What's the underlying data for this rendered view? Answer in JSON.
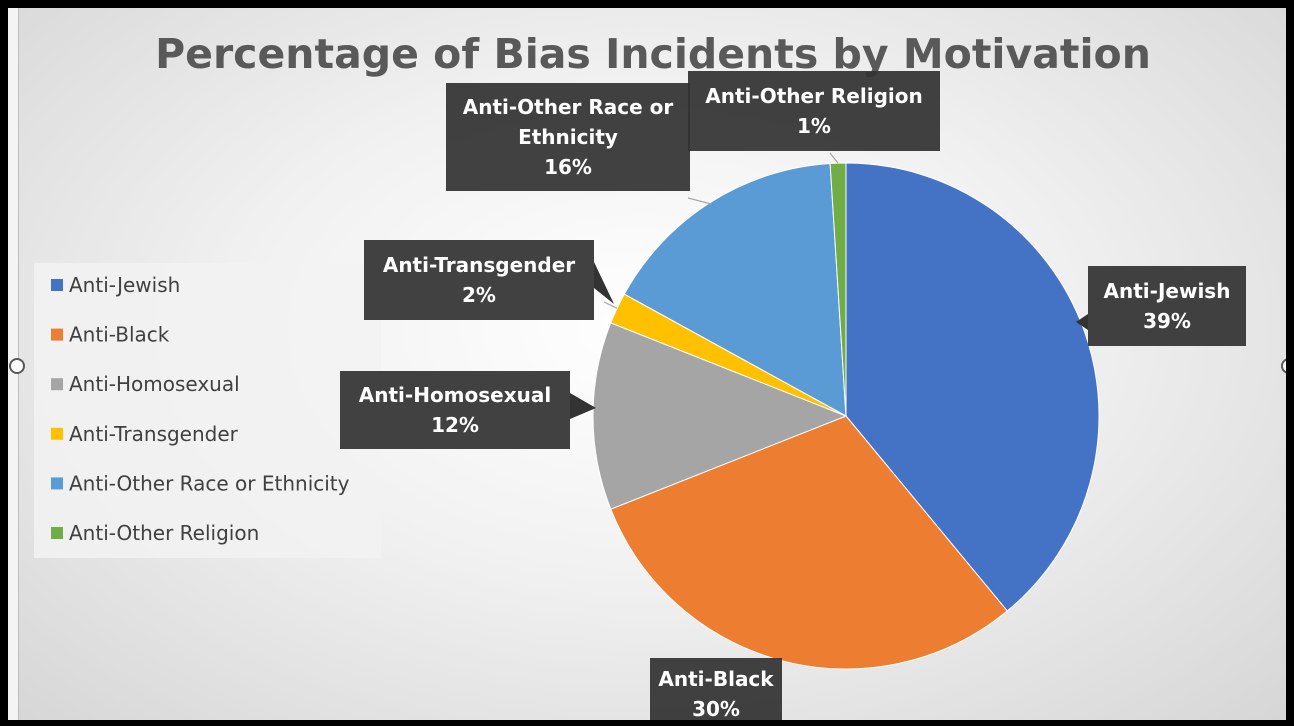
{
  "chart_data": {
    "type": "pie",
    "title": "Percentage of Bias Incidents by Motivation",
    "legend_position": "left",
    "categories": [
      "Anti-Jewish",
      "Anti-Black",
      "Anti-Homosexual",
      "Anti-Transgender",
      "Anti-Other Race or Ethnicity",
      "Anti-Other Religion"
    ],
    "values": [
      39,
      30,
      12,
      2,
      16,
      1
    ],
    "value_labels": [
      "39%",
      "30%",
      "12%",
      "2%",
      "16%",
      "1%"
    ],
    "colors": [
      "#4472C4",
      "#ED7D31",
      "#A5A5A5",
      "#FFC000",
      "#5B9BD5",
      "#70AD47"
    ]
  }
}
